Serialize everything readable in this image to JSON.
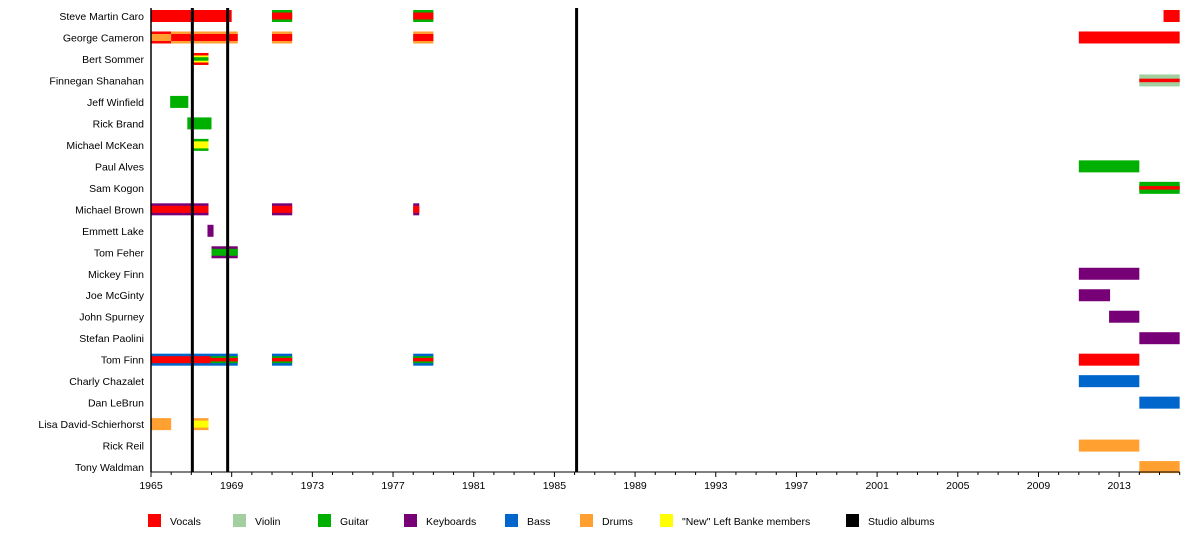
{
  "chart_data": {
    "type": "timeline",
    "title": "",
    "xlim": [
      1965,
      2016
    ],
    "x_tick_labels": [
      "1965",
      "1969",
      "1973",
      "1977",
      "1981",
      "1985",
      "1989",
      "1993",
      "1997",
      "2001",
      "2005",
      "2009",
      "2013"
    ],
    "x_major_step": 4,
    "x_minor_step": 1,
    "roles": {
      "vocals": {
        "label": "Vocals",
        "color": "#ff0000"
      },
      "violin": {
        "label": "Violin",
        "color": "#a3cfa0"
      },
      "guitar": {
        "label": "Guitar",
        "color": "#00b000"
      },
      "keyboards": {
        "label": "Keyboards",
        "color": "#770077"
      },
      "bass": {
        "label": "Bass",
        "color": "#0066cc"
      },
      "drums": {
        "label": "Drums",
        "color": "#ffa030"
      },
      "new": {
        "label": "\"New\" Left Banke members",
        "color": "#ffff00"
      },
      "albums": {
        "label": "Studio albums",
        "color": "#000000"
      }
    },
    "legend_order": [
      "vocals",
      "violin",
      "guitar",
      "keyboards",
      "bass",
      "drums",
      "new",
      "albums"
    ],
    "studio_albums": [
      1967.05,
      1968.8,
      1986.1
    ],
    "members": [
      {
        "name": "Steve Martin Caro",
        "bars": [
          {
            "start": 1965.0,
            "end": 1969.0,
            "layers": [
              "vocals"
            ]
          },
          {
            "start": 1971.0,
            "end": 1972.0,
            "layers": [
              "guitar",
              "vocals"
            ]
          },
          {
            "start": 1978.0,
            "end": 1979.0,
            "layers": [
              "guitar",
              "vocals"
            ]
          },
          {
            "start": 2015.2,
            "end": 2016.0,
            "layers": [
              "vocals"
            ]
          }
        ]
      },
      {
        "name": "George Cameron",
        "bars": [
          {
            "start": 1965.0,
            "end": 1966.0,
            "layers": [
              "vocals",
              "drums"
            ]
          },
          {
            "start": 1966.0,
            "end": 1969.3,
            "layers": [
              "drums",
              "vocals"
            ]
          },
          {
            "start": 1971.0,
            "end": 1972.0,
            "layers": [
              "drums",
              "vocals"
            ]
          },
          {
            "start": 1978.0,
            "end": 1979.0,
            "layers": [
              "drums",
              "vocals"
            ]
          },
          {
            "start": 2011.0,
            "end": 2016.0,
            "layers": [
              "vocals"
            ]
          }
        ]
      },
      {
        "name": "Bert Sommer",
        "bars": [
          {
            "start": 1967.1,
            "end": 1967.85,
            "layers": [
              "vocals",
              "new",
              "guitar"
            ]
          }
        ]
      },
      {
        "name": "Finnegan Shanahan",
        "bars": [
          {
            "start": 2014.0,
            "end": 2016.0,
            "layers": [
              "violin",
              "violin",
              "vocals"
            ]
          }
        ]
      },
      {
        "name": "Jeff Winfield",
        "bars": [
          {
            "start": 1965.95,
            "end": 1966.85,
            "layers": [
              "guitar"
            ]
          }
        ]
      },
      {
        "name": "Rick Brand",
        "bars": [
          {
            "start": 1966.8,
            "end": 1968.0,
            "layers": [
              "guitar"
            ]
          }
        ]
      },
      {
        "name": "Michael McKean",
        "bars": [
          {
            "start": 1967.1,
            "end": 1967.85,
            "layers": [
              "guitar",
              "new"
            ]
          }
        ]
      },
      {
        "name": "Paul Alves",
        "bars": [
          {
            "start": 2011.0,
            "end": 2014.0,
            "layers": [
              "guitar"
            ]
          }
        ]
      },
      {
        "name": "Sam Kogon",
        "bars": [
          {
            "start": 2014.0,
            "end": 2016.0,
            "layers": [
              "guitar",
              "guitar",
              "vocals"
            ]
          }
        ]
      },
      {
        "name": "Michael Brown",
        "bars": [
          {
            "start": 1965.0,
            "end": 1967.85,
            "layers": [
              "keyboards",
              "vocals"
            ]
          },
          {
            "start": 1971.0,
            "end": 1972.0,
            "layers": [
              "keyboards",
              "vocals"
            ]
          },
          {
            "start": 1978.0,
            "end": 1978.3,
            "layers": [
              "keyboards",
              "vocals"
            ]
          }
        ]
      },
      {
        "name": "Emmett Lake",
        "bars": [
          {
            "start": 1967.8,
            "end": 1968.1,
            "layers": [
              "keyboards"
            ]
          }
        ]
      },
      {
        "name": "Tom Feher",
        "bars": [
          {
            "start": 1968.0,
            "end": 1969.3,
            "layers": [
              "keyboards",
              "guitar"
            ]
          }
        ]
      },
      {
        "name": "Mickey Finn",
        "bars": [
          {
            "start": 2011.0,
            "end": 2014.0,
            "layers": [
              "keyboards"
            ]
          }
        ]
      },
      {
        "name": "Joe McGinty",
        "bars": [
          {
            "start": 2011.0,
            "end": 2012.55,
            "layers": [
              "keyboards"
            ]
          }
        ]
      },
      {
        "name": "John Spurney",
        "bars": [
          {
            "start": 2012.5,
            "end": 2014.0,
            "layers": [
              "keyboards"
            ]
          }
        ]
      },
      {
        "name": "Stefan Paolini",
        "bars": [
          {
            "start": 2014.0,
            "end": 2016.0,
            "layers": [
              "keyboards"
            ]
          }
        ]
      },
      {
        "name": "Tom Finn",
        "bars": [
          {
            "start": 1965.0,
            "end": 1967.95,
            "layers": [
              "bass",
              "vocals"
            ]
          },
          {
            "start": 1967.95,
            "end": 1969.3,
            "layers": [
              "bass",
              "guitar",
              "vocals"
            ]
          },
          {
            "start": 1971.0,
            "end": 1972.0,
            "layers": [
              "bass",
              "guitar",
              "vocals"
            ]
          },
          {
            "start": 1978.0,
            "end": 1979.0,
            "layers": [
              "bass",
              "guitar",
              "vocals"
            ]
          },
          {
            "start": 2011.0,
            "end": 2014.0,
            "layers": [
              "vocals"
            ]
          }
        ]
      },
      {
        "name": "Charly Chazalet",
        "bars": [
          {
            "start": 2011.0,
            "end": 2014.0,
            "layers": [
              "bass"
            ]
          }
        ]
      },
      {
        "name": "Dan LeBrun",
        "bars": [
          {
            "start": 2014.0,
            "end": 2016.0,
            "layers": [
              "bass"
            ]
          }
        ]
      },
      {
        "name": "Lisa David-Schierhorst",
        "bars": [
          {
            "start": 1965.0,
            "end": 1966.0,
            "layers": [
              "drums"
            ]
          },
          {
            "start": 1967.1,
            "end": 1967.85,
            "layers": [
              "drums",
              "new"
            ]
          }
        ]
      },
      {
        "name": "Rick Reil",
        "bars": [
          {
            "start": 2011.0,
            "end": 2014.0,
            "layers": [
              "drums"
            ]
          }
        ]
      },
      {
        "name": "Tony Waldman",
        "bars": [
          {
            "start": 2014.0,
            "end": 2016.0,
            "layers": [
              "drums"
            ]
          }
        ]
      }
    ]
  }
}
